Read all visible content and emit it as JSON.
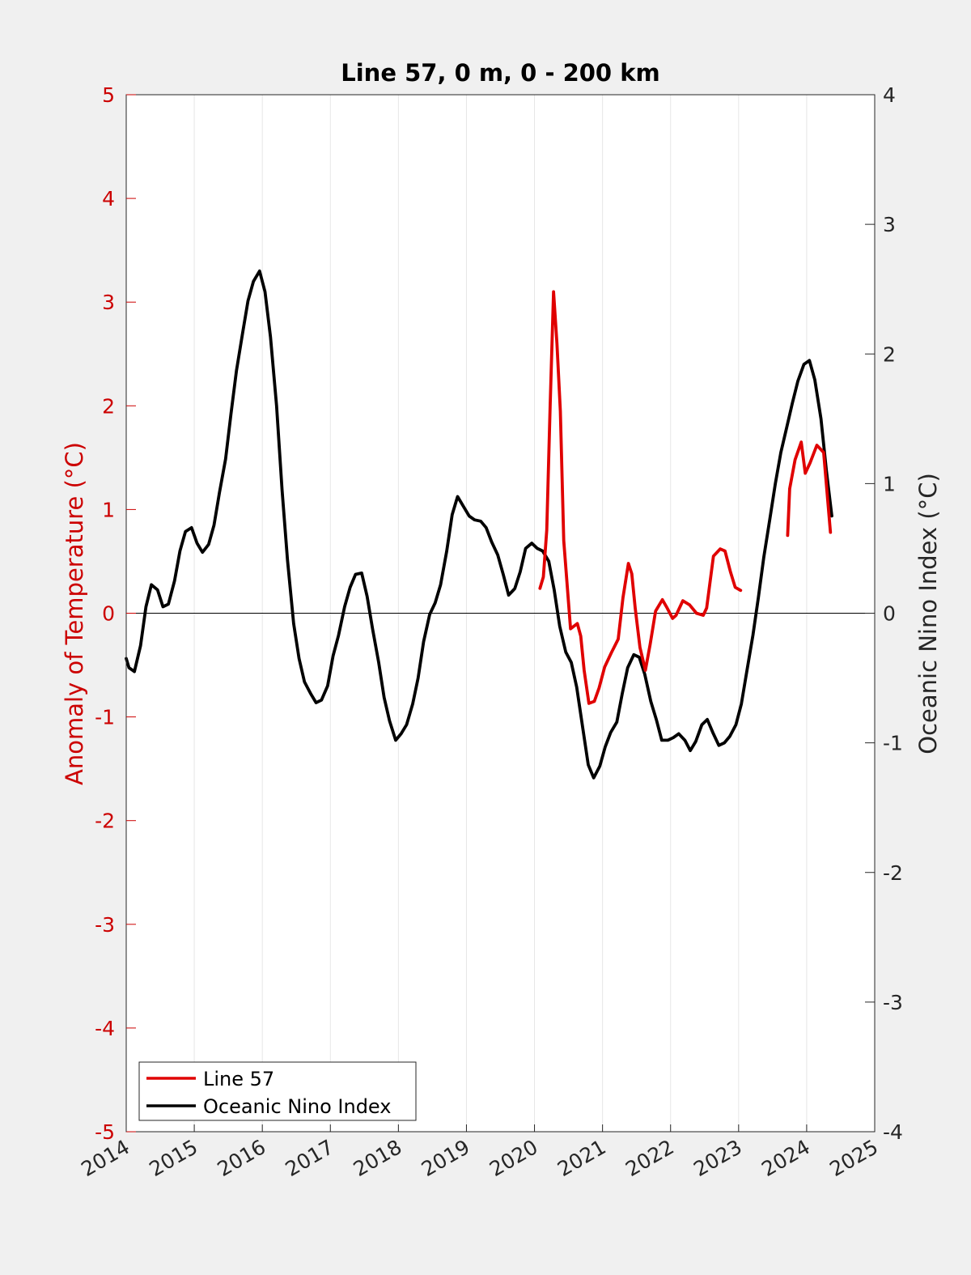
{
  "colors": {
    "line57": "#e00000",
    "oni": "#000000",
    "left_axis": "#cc0000",
    "right_axis": "#262626",
    "grid": "#e6e6e6",
    "background": "#f0f0f0",
    "plot_background": "#ffffff"
  },
  "chart_data": {
    "type": "line",
    "title": "Line 57, 0 m, 0 - 200 km",
    "xlabel": "",
    "ylabel_left": "Anomaly of Temperature (°C)",
    "ylabel_right": "Oceanic Nino Index (°C)",
    "xlim": [
      2014,
      2025
    ],
    "ylim_left": [
      -5,
      5
    ],
    "ylim_right": [
      -4,
      4
    ],
    "x_ticks": [
      "2014",
      "2015",
      "2016",
      "2017",
      "2018",
      "2019",
      "2020",
      "2021",
      "2022",
      "2023",
      "2024",
      "2025"
    ],
    "y_left_ticks": [
      "5",
      "4",
      "3",
      "2",
      "1",
      "0",
      "-1",
      "-2",
      "-3",
      "-4",
      "-5"
    ],
    "y_right_ticks": [
      "4",
      "3",
      "2",
      "1",
      "0",
      "-1",
      "-2",
      "-3",
      "-4"
    ],
    "grid": "vertical",
    "zero_line": true,
    "legend": {
      "position": "bottom-left",
      "entries": [
        "Line 57",
        "Oceanic Nino Index"
      ]
    },
    "series": [
      {
        "name": "Line 57",
        "axis": "left",
        "segments": [
          [
            [
              2020.08,
              0.24
            ],
            [
              2020.13,
              0.35
            ],
            [
              2020.18,
              0.8
            ],
            [
              2020.23,
              2.0
            ],
            [
              2020.28,
              3.1
            ],
            [
              2020.33,
              2.6
            ],
            [
              2020.38,
              1.95
            ],
            [
              2020.43,
              0.7
            ],
            [
              2020.53,
              -0.15
            ],
            [
              2020.63,
              -0.1
            ],
            [
              2020.68,
              -0.22
            ],
            [
              2020.73,
              -0.55
            ],
            [
              2020.8,
              -0.87
            ],
            [
              2020.88,
              -0.85
            ],
            [
              2020.95,
              -0.72
            ],
            [
              2021.03,
              -0.52
            ],
            [
              2021.13,
              -0.38
            ],
            [
              2021.23,
              -0.25
            ],
            [
              2021.3,
              0.15
            ],
            [
              2021.38,
              0.48
            ],
            [
              2021.43,
              0.38
            ],
            [
              2021.48,
              0.05
            ],
            [
              2021.55,
              -0.33
            ],
            [
              2021.63,
              -0.55
            ],
            [
              2021.7,
              -0.3
            ],
            [
              2021.78,
              0.02
            ],
            [
              2021.88,
              0.13
            ],
            [
              2021.95,
              0.05
            ],
            [
              2022.03,
              -0.05
            ],
            [
              2022.08,
              -0.02
            ],
            [
              2022.18,
              0.12
            ],
            [
              2022.28,
              0.08
            ],
            [
              2022.38,
              0.0
            ],
            [
              2022.48,
              -0.02
            ],
            [
              2022.53,
              0.05
            ],
            [
              2022.63,
              0.55
            ],
            [
              2022.73,
              0.62
            ],
            [
              2022.8,
              0.6
            ],
            [
              2022.88,
              0.4
            ],
            [
              2022.95,
              0.25
            ],
            [
              2023.03,
              0.22
            ]
          ],
          [
            [
              2023.72,
              0.75
            ],
            [
              2023.75,
              1.2
            ],
            [
              2023.83,
              1.48
            ],
            [
              2023.92,
              1.65
            ],
            [
              2023.98,
              1.35
            ],
            [
              2024.05,
              1.45
            ],
            [
              2024.15,
              1.62
            ],
            [
              2024.25,
              1.55
            ],
            [
              2024.35,
              0.78
            ]
          ]
        ]
      },
      {
        "name": "Oceanic Nino Index",
        "axis": "right",
        "segments": [
          [
            [
              2014.0,
              -0.35
            ],
            [
              2014.04,
              -0.42
            ],
            [
              2014.12,
              -0.45
            ],
            [
              2014.21,
              -0.25
            ],
            [
              2014.29,
              0.05
            ],
            [
              2014.37,
              0.22
            ],
            [
              2014.46,
              0.18
            ],
            [
              2014.54,
              0.05
            ],
            [
              2014.62,
              0.07
            ],
            [
              2014.71,
              0.25
            ],
            [
              2014.79,
              0.48
            ],
            [
              2014.87,
              0.63
            ],
            [
              2014.96,
              0.66
            ],
            [
              2015.04,
              0.54
            ],
            [
              2015.12,
              0.47
            ],
            [
              2015.21,
              0.53
            ],
            [
              2015.29,
              0.68
            ],
            [
              2015.37,
              0.93
            ],
            [
              2015.46,
              1.19
            ],
            [
              2015.54,
              1.54
            ],
            [
              2015.62,
              1.87
            ],
            [
              2015.71,
              2.16
            ],
            [
              2015.79,
              2.41
            ],
            [
              2015.87,
              2.56
            ],
            [
              2015.96,
              2.64
            ],
            [
              2016.04,
              2.48
            ],
            [
              2016.12,
              2.13
            ],
            [
              2016.21,
              1.6
            ],
            [
              2016.29,
              0.95
            ],
            [
              2016.37,
              0.41
            ],
            [
              2016.46,
              -0.08
            ],
            [
              2016.54,
              -0.35
            ],
            [
              2016.62,
              -0.53
            ],
            [
              2016.71,
              -0.62
            ],
            [
              2016.79,
              -0.69
            ],
            [
              2016.87,
              -0.67
            ],
            [
              2016.96,
              -0.56
            ],
            [
              2017.04,
              -0.33
            ],
            [
              2017.12,
              -0.17
            ],
            [
              2017.21,
              0.05
            ],
            [
              2017.29,
              0.2
            ],
            [
              2017.37,
              0.3
            ],
            [
              2017.46,
              0.31
            ],
            [
              2017.54,
              0.13
            ],
            [
              2017.62,
              -0.12
            ],
            [
              2017.71,
              -0.38
            ],
            [
              2017.79,
              -0.65
            ],
            [
              2017.87,
              -0.83
            ],
            [
              2017.96,
              -0.98
            ],
            [
              2018.04,
              -0.93
            ],
            [
              2018.12,
              -0.86
            ],
            [
              2018.21,
              -0.7
            ],
            [
              2018.29,
              -0.5
            ],
            [
              2018.37,
              -0.22
            ],
            [
              2018.46,
              -0.01
            ],
            [
              2018.54,
              0.08
            ],
            [
              2018.62,
              0.22
            ],
            [
              2018.71,
              0.48
            ],
            [
              2018.79,
              0.76
            ],
            [
              2018.87,
              0.9
            ],
            [
              2018.96,
              0.82
            ],
            [
              2019.04,
              0.75
            ],
            [
              2019.12,
              0.72
            ],
            [
              2019.21,
              0.71
            ],
            [
              2019.29,
              0.66
            ],
            [
              2019.37,
              0.55
            ],
            [
              2019.46,
              0.45
            ],
            [
              2019.54,
              0.3
            ],
            [
              2019.62,
              0.14
            ],
            [
              2019.71,
              0.19
            ],
            [
              2019.79,
              0.32
            ],
            [
              2019.87,
              0.5
            ],
            [
              2019.96,
              0.54
            ],
            [
              2020.04,
              0.5
            ],
            [
              2020.12,
              0.48
            ],
            [
              2020.21,
              0.4
            ],
            [
              2020.29,
              0.18
            ],
            [
              2020.37,
              -0.1
            ],
            [
              2020.46,
              -0.3
            ],
            [
              2020.54,
              -0.38
            ],
            [
              2020.62,
              -0.57
            ],
            [
              2020.71,
              -0.89
            ],
            [
              2020.79,
              -1.17
            ],
            [
              2020.87,
              -1.27
            ],
            [
              2020.96,
              -1.18
            ],
            [
              2021.04,
              -1.03
            ],
            [
              2021.12,
              -0.92
            ],
            [
              2021.21,
              -0.84
            ],
            [
              2021.29,
              -0.62
            ],
            [
              2021.37,
              -0.42
            ],
            [
              2021.46,
              -0.32
            ],
            [
              2021.54,
              -0.34
            ],
            [
              2021.62,
              -0.47
            ],
            [
              2021.71,
              -0.68
            ],
            [
              2021.79,
              -0.82
            ],
            [
              2021.87,
              -0.98
            ],
            [
              2021.96,
              -0.98
            ],
            [
              2022.04,
              -0.96
            ],
            [
              2022.12,
              -0.93
            ],
            [
              2022.21,
              -0.98
            ],
            [
              2022.29,
              -1.06
            ],
            [
              2022.37,
              -0.99
            ],
            [
              2022.46,
              -0.86
            ],
            [
              2022.54,
              -0.82
            ],
            [
              2022.62,
              -0.92
            ],
            [
              2022.71,
              -1.02
            ],
            [
              2022.79,
              -1.0
            ],
            [
              2022.87,
              -0.95
            ],
            [
              2022.96,
              -0.86
            ],
            [
              2023.04,
              -0.7
            ],
            [
              2023.12,
              -0.45
            ],
            [
              2023.21,
              -0.17
            ],
            [
              2023.29,
              0.12
            ],
            [
              2023.37,
              0.43
            ],
            [
              2023.46,
              0.73
            ],
            [
              2023.54,
              1.0
            ],
            [
              2023.62,
              1.24
            ],
            [
              2023.71,
              1.44
            ],
            [
              2023.79,
              1.62
            ],
            [
              2023.87,
              1.79
            ],
            [
              2023.96,
              1.92
            ],
            [
              2024.04,
              1.95
            ],
            [
              2024.12,
              1.8
            ],
            [
              2024.21,
              1.5
            ],
            [
              2024.29,
              1.1
            ],
            [
              2024.37,
              0.75
            ]
          ]
        ]
      }
    ]
  }
}
